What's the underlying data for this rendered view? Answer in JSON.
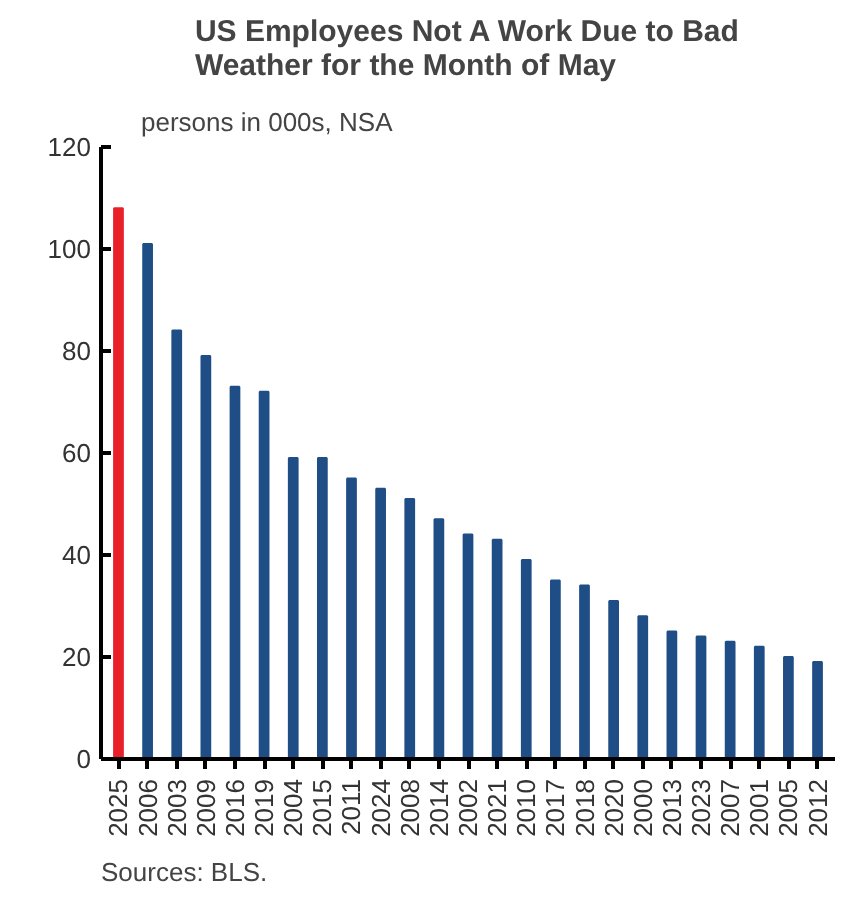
{
  "chart_data": {
    "type": "bar",
    "title": "US Employees Not A Work Due to Bad Weather for the Month of May",
    "subtitle": "persons in 000s, NSA",
    "annotations": [
      "Sources: BLS."
    ],
    "categories": [
      "2025",
      "2006",
      "2003",
      "2009",
      "2016",
      "2019",
      "2004",
      "2015",
      "2011",
      "2024",
      "2008",
      "2014",
      "2002",
      "2021",
      "2010",
      "2017",
      "2018",
      "2020",
      "2000",
      "2013",
      "2023",
      "2007",
      "2001",
      "2005",
      "2012"
    ],
    "values": [
      108,
      101,
      84,
      79,
      73,
      72,
      59,
      59,
      55,
      53,
      51,
      47,
      44,
      43,
      39,
      35,
      34,
      31,
      28,
      25,
      24,
      23,
      22,
      20,
      19
    ],
    "colors": [
      "#e8202a",
      "#1f4e86",
      "#1f4e86",
      "#1f4e86",
      "#1f4e86",
      "#1f4e86",
      "#1f4e86",
      "#1f4e86",
      "#1f4e86",
      "#1f4e86",
      "#1f4e86",
      "#1f4e86",
      "#1f4e86",
      "#1f4e86",
      "#1f4e86",
      "#1f4e86",
      "#1f4e86",
      "#1f4e86",
      "#1f4e86",
      "#1f4e86",
      "#1f4e86",
      "#1f4e86",
      "#1f4e86",
      "#1f4e86",
      "#1f4e86"
    ],
    "ylim": [
      0,
      120
    ],
    "yticks": [
      0,
      20,
      40,
      60,
      80,
      100,
      120
    ],
    "grid": false
  }
}
